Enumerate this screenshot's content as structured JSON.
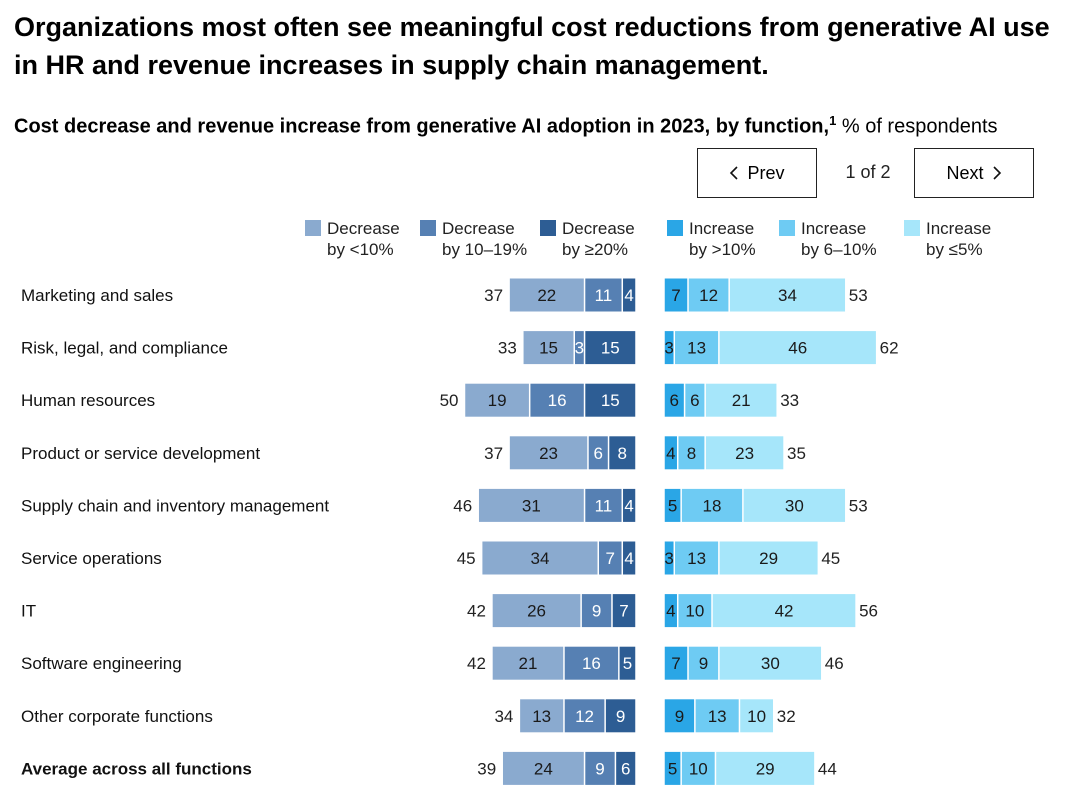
{
  "header": {
    "title": "Organizations most often see meaningful cost reductions from generative AI use in HR and revenue increases in supply chain management.",
    "subtitle_bold": "Cost decrease and revenue increase from generative AI adoption in 2023, by function,",
    "subtitle_footnote": "1",
    "subtitle_rest": " % of respondents"
  },
  "pager": {
    "prev_label": "Prev",
    "next_label": "Next",
    "page_indicator": "1 of 2"
  },
  "legend": [
    {
      "line1": "Decrease",
      "line2": "by <10%",
      "color": "#8aaacf"
    },
    {
      "line1": "Decrease",
      "line2": "by 10–19%",
      "color": "#5680b3"
    },
    {
      "line1": "Decrease",
      "line2": "by ≥20%",
      "color": "#2d5d94"
    },
    {
      "line1": "Increase",
      "line2": "by >10%",
      "color": "#2aa6e6"
    },
    {
      "line1": "Increase",
      "line2": "by 6–10%",
      "color": "#6ecbf3"
    },
    {
      "line1": "Increase",
      "line2": "by ≤5%",
      "color": "#a6e6fa"
    }
  ],
  "chart_data": {
    "type": "bar",
    "orientation": "horizontal-diverging",
    "title": "Cost decrease and revenue increase from generative AI adoption in 2023, by function",
    "unit": "% of respondents",
    "categories": [
      "Marketing and sales",
      "Risk, legal, and compliance",
      "Human resources",
      "Product or service development",
      "Supply chain and inventory management",
      "Service operations",
      "IT",
      "Software engineering",
      "Other corporate functions",
      "Average across all functions"
    ],
    "decrease_series": [
      {
        "name": "Decrease by <10%",
        "color": "#8aaacf",
        "text_color": "#1a1a1a",
        "values": [
          22,
          15,
          19,
          23,
          31,
          34,
          26,
          21,
          13,
          24
        ]
      },
      {
        "name": "Decrease by 10–19%",
        "color": "#5680b3",
        "text_color": "#ffffff",
        "values": [
          11,
          3,
          16,
          6,
          11,
          7,
          9,
          16,
          12,
          9
        ]
      },
      {
        "name": "Decrease by ≥20%",
        "color": "#2d5d94",
        "text_color": "#ffffff",
        "values": [
          4,
          15,
          15,
          8,
          4,
          4,
          7,
          5,
          9,
          6
        ]
      }
    ],
    "decrease_totals": [
      37,
      33,
      50,
      37,
      46,
      45,
      42,
      42,
      34,
      39
    ],
    "increase_series": [
      {
        "name": "Increase by >10%",
        "color": "#2aa6e6",
        "text_color": "#1a1a1a",
        "values": [
          7,
          3,
          6,
          4,
          5,
          3,
          4,
          7,
          9,
          5
        ]
      },
      {
        "name": "Increase by 6–10%",
        "color": "#6ecbf3",
        "text_color": "#1a1a1a",
        "values": [
          12,
          13,
          6,
          8,
          18,
          13,
          10,
          9,
          13,
          10
        ]
      },
      {
        "name": "Increase by ≤5%",
        "color": "#a6e6fa",
        "text_color": "#1a1a1a",
        "values": [
          34,
          46,
          21,
          23,
          30,
          29,
          42,
          30,
          10,
          29
        ]
      }
    ],
    "increase_totals": [
      53,
      62,
      33,
      35,
      53,
      45,
      56,
      46,
      32,
      44
    ],
    "bold_category": "Average across all functions"
  }
}
